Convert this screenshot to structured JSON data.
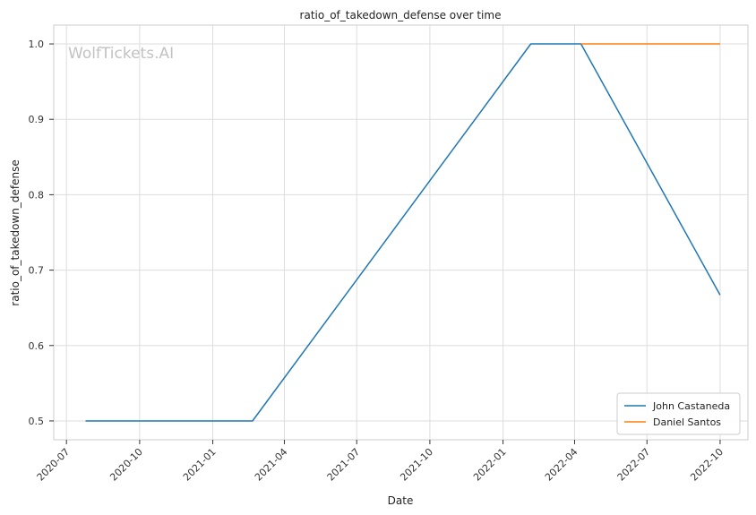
{
  "chart_data": {
    "type": "line",
    "title": "ratio_of_takedown_defense over time",
    "xlabel": "Date",
    "ylabel": "ratio_of_takedown_defense",
    "watermark": "WolfTickets.AI",
    "x_ticks": [
      "2020-07",
      "2020-10",
      "2021-01",
      "2021-04",
      "2021-07",
      "2021-10",
      "2022-01",
      "2022-04",
      "2022-07",
      "2022-10"
    ],
    "y_ticks": [
      "0.5",
      "0.6",
      "0.7",
      "0.8",
      "0.9",
      "1.0"
    ],
    "ylim": [
      0.475,
      1.025
    ],
    "xlim": [
      "2020-06-15",
      "2022-11-05"
    ],
    "grid": true,
    "legend_position": "bottom-right",
    "series": [
      {
        "name": "John Castaneda",
        "color": "#1f77b4",
        "points": [
          {
            "x": "2020-07-25",
            "y": 0.5
          },
          {
            "x": "2021-02-20",
            "y": 0.5
          },
          {
            "x": "2022-02-05",
            "y": 1.0
          },
          {
            "x": "2022-04-09",
            "y": 1.0
          },
          {
            "x": "2022-10-01",
            "y": 0.667
          }
        ]
      },
      {
        "name": "Daniel Santos",
        "color": "#ff7f0e",
        "points": [
          {
            "x": "2022-04-09",
            "y": 1.0
          },
          {
            "x": "2022-10-01",
            "y": 1.0
          }
        ]
      }
    ]
  }
}
